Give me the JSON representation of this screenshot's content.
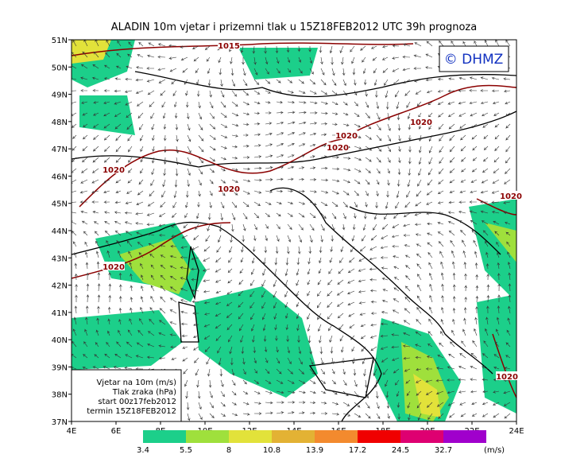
{
  "map": {
    "title": "ALADIN 10m vjetar i prizemni tlak u 15Z18FEB2012 UTC 39h prognoza",
    "logo": "© DHMZ",
    "latitude_labels": [
      "51N",
      "50N",
      "49N",
      "48N",
      "47N",
      "46N",
      "45N",
      "44N",
      "43N",
      "42N",
      "41N",
      "40N",
      "39N",
      "38N",
      "37N"
    ],
    "longitude_labels": [
      "4E",
      "6E",
      "8E",
      "10E",
      "12E",
      "14E",
      "16E",
      "18E",
      "20E",
      "22E",
      "24E"
    ],
    "isobar_labels": [
      "1015",
      "1020",
      "1020",
      "1020",
      "1020",
      "1020",
      "1020",
      "1020",
      "1020"
    ],
    "info_box": [
      "Vjetar na 10m (m/s)",
      "Tlak zraka (hPa)",
      "start 00z17feb2012",
      "termin 15Z18FEB2012"
    ],
    "colorbar": {
      "colors": [
        "#1ccf8a",
        "#9fe03c",
        "#e2e23a",
        "#e3b234",
        "#f38a2e",
        "#f00000",
        "#de0071",
        "#a000cc"
      ],
      "labels": [
        3.4,
        5.5,
        8,
        10.8,
        13.9,
        17.2,
        24.5,
        32.7
      ],
      "unit": "(m/s)"
    }
  }
}
